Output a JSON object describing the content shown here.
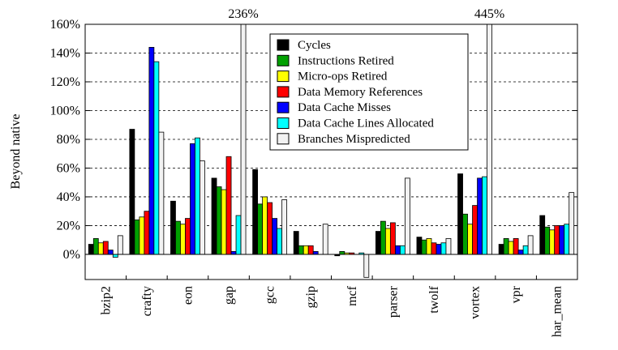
{
  "chart_data": {
    "type": "bar",
    "y_label": "Beyond native",
    "categories": [
      "bzip2",
      "crafty",
      "eon",
      "gap",
      "gcc",
      "gzip",
      "mcf",
      "parser",
      "twolf",
      "vortex",
      "vpr",
      "har_mean"
    ],
    "series": [
      {
        "name": "Cycles",
        "color": "#000000",
        "values": [
          7,
          87,
          37,
          53,
          59,
          16,
          -1,
          16,
          12,
          56,
          7,
          27
        ]
      },
      {
        "name": "Instructions Retired",
        "color": "#00a000",
        "values": [
          11,
          24,
          23,
          47,
          35,
          6,
          2,
          23,
          10,
          28,
          11,
          19
        ]
      },
      {
        "name": "Micro-ops Retired",
        "color": "#ffff00",
        "values": [
          8,
          26,
          21,
          45,
          40,
          6,
          1,
          18,
          11,
          21,
          9,
          17
        ]
      },
      {
        "name": "Data Memory References",
        "color": "#ff0000",
        "values": [
          9,
          30,
          25,
          68,
          36,
          6,
          1,
          22,
          8,
          34,
          11,
          20
        ]
      },
      {
        "name": "Data Cache Misses",
        "color": "#0000ff",
        "values": [
          3,
          144,
          77,
          2,
          25,
          2,
          0,
          6,
          7,
          53,
          3,
          20
        ]
      },
      {
        "name": "Data Cache Lines Allocated",
        "color": "#00ffff",
        "values": [
          -2,
          134,
          81,
          27,
          18,
          0,
          1,
          6,
          8,
          54,
          6,
          21
        ]
      },
      {
        "name": "Branches Mispredicted",
        "color": "#f2f2f2",
        "values": [
          13,
          85,
          65,
          236,
          38,
          21,
          -16,
          53,
          11,
          445,
          13,
          43
        ],
        "value_labels": [
          null,
          null,
          null,
          "236%",
          null,
          null,
          null,
          null,
          null,
          "445%",
          null,
          null
        ]
      }
    ],
    "ylim": [
      -17.5,
      160
    ],
    "yticks": [
      {
        "value": 0,
        "label": "0%"
      },
      {
        "value": 20,
        "label": "20%"
      },
      {
        "value": 40,
        "label": "40%"
      },
      {
        "value": 60,
        "label": "60%"
      },
      {
        "value": 80,
        "label": "80%"
      },
      {
        "value": 100,
        "label": "100%"
      },
      {
        "value": 120,
        "label": "120%"
      },
      {
        "value": 140,
        "label": "140%"
      },
      {
        "value": 160,
        "label": "160%"
      }
    ],
    "grid": true,
    "legend": "top"
  }
}
